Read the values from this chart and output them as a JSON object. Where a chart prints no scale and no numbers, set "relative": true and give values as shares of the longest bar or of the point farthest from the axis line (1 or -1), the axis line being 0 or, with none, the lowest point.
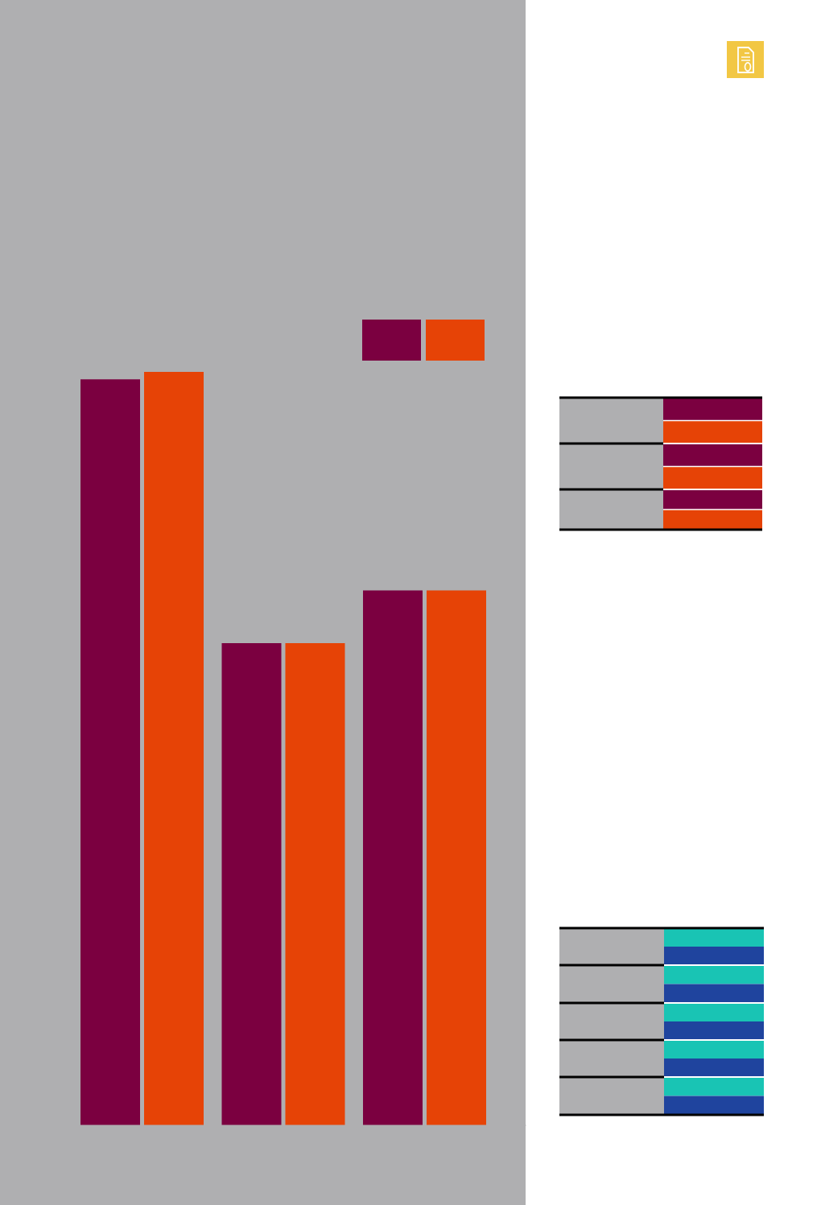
{
  "chart_data": {
    "type": "bar",
    "relative": true,
    "categories": [
      null,
      null,
      null
    ],
    "series": [
      {
        "color": "#7b0040",
        "values": [
          0.99,
          0.64,
          0.71
        ]
      },
      {
        "color": "#e64306",
        "values": [
          1,
          0.64,
          0.71
        ]
      }
    ]
  }
}
